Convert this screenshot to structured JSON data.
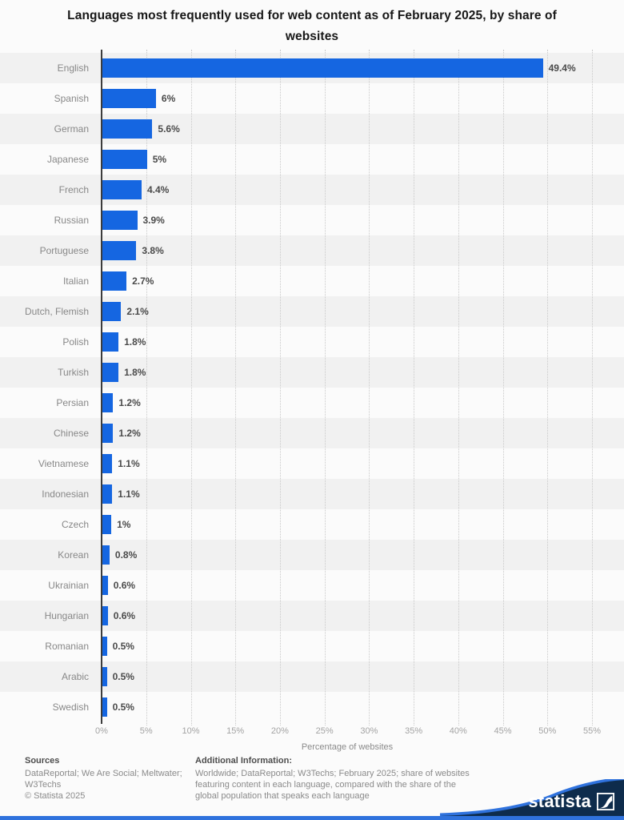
{
  "chart_data": {
    "type": "bar",
    "orientation": "horizontal",
    "title": "Languages most frequently used for web content as of February 2025, by share of websites",
    "categories": [
      "English",
      "Spanish",
      "German",
      "Japanese",
      "French",
      "Russian",
      "Portuguese",
      "Italian",
      "Dutch, Flemish",
      "Polish",
      "Turkish",
      "Persian",
      "Chinese",
      "Vietnamese",
      "Indonesian",
      "Czech",
      "Korean",
      "Ukrainian",
      "Hungarian",
      "Romanian",
      "Arabic",
      "Swedish"
    ],
    "values": [
      49.4,
      6,
      5.6,
      5,
      4.4,
      3.9,
      3.8,
      2.7,
      2.1,
      1.8,
      1.8,
      1.2,
      1.2,
      1.1,
      1.1,
      1,
      0.8,
      0.6,
      0.6,
      0.5,
      0.5,
      0.5
    ],
    "value_labels": [
      "49.4%",
      "6%",
      "5.6%",
      "5%",
      "4.4%",
      "3.9%",
      "3.8%",
      "2.7%",
      "2.1%",
      "1.8%",
      "1.8%",
      "1.2%",
      "1.2%",
      "1.1%",
      "1.1%",
      "1%",
      "0.8%",
      "0.6%",
      "0.6%",
      "0.5%",
      "0.5%",
      "0.5%"
    ],
    "xlabel": "Percentage of websites",
    "x_ticks": [
      "0%",
      "5%",
      "10%",
      "15%",
      "20%",
      "25%",
      "30%",
      "35%",
      "40%",
      "45%",
      "50%",
      "55%"
    ],
    "xlim": [
      0,
      55
    ],
    "grid": "dotted-vertical",
    "legend": "none",
    "bar_color": "#1566e1"
  },
  "footer": {
    "sources_heading": "Sources",
    "sources_text": "DataReportal; We Are Social; Meltwater; W3Techs",
    "copyright": "© Statista 2025",
    "additional_heading": "Additional Information:",
    "additional_text": "Worldwide; DataReportal; W3Techs; February 2025; share of websites featuring content in each language, compared with the share of the global population that speaks each language"
  },
  "branding": {
    "logo_text": "statista",
    "navy": "#0e2c4c",
    "accent_blue": "#2f72dd"
  }
}
